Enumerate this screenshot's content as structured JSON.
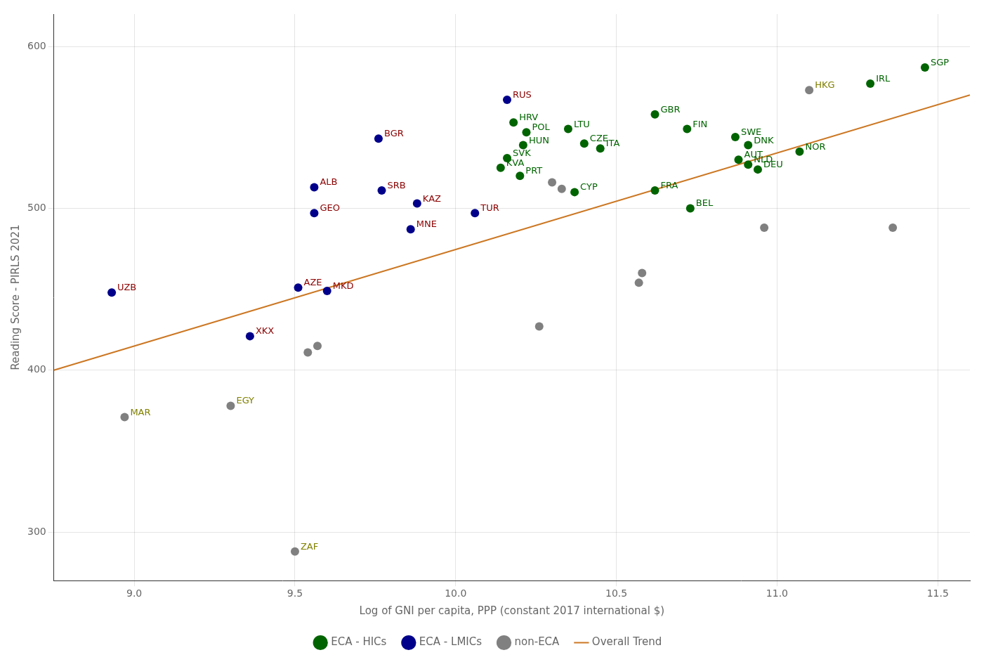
{
  "chart_data": {
    "type": "scatter",
    "xlabel": "Log of GNI per capita, PPP (constant 2017 international $)",
    "ylabel": "Reading Score - PIRLS 2021",
    "xlim": [
      8.75,
      11.6
    ],
    "ylim": [
      270,
      620
    ],
    "xticks": [
      {
        "value": 9.0,
        "label": "9.0"
      },
      9.5,
      {
        "value": 10.0,
        "label": "10.0"
      },
      10.5,
      {
        "value": 11.0,
        "label": "11.0"
      },
      11.5
    ],
    "yticks": [
      300,
      400,
      500,
      600
    ],
    "grid": true,
    "legend": "bottom",
    "series": [
      {
        "name": "ECA - HICs",
        "color": "#006400",
        "label_color": "#006400",
        "marker": "circle",
        "x": [
          10.18,
          10.22,
          10.35,
          10.62,
          10.72,
          10.21,
          10.4,
          10.45,
          10.16,
          10.14,
          10.2,
          10.37,
          10.62,
          10.73,
          10.87,
          10.91,
          10.88,
          10.91,
          10.94,
          11.07,
          11.29,
          11.46
        ],
        "values": [
          553,
          547,
          549,
          558,
          549,
          539,
          540,
          537,
          531,
          525,
          520,
          510,
          511,
          500,
          544,
          539,
          530,
          527,
          524,
          535,
          577,
          587
        ],
        "labels": [
          "HRV",
          "POL",
          "LTU",
          "GBR",
          "FIN",
          "HUN",
          "CZE",
          "ITA",
          "SVK",
          "KVA",
          "PRT",
          "CYP",
          "FRA",
          "BEL",
          "SWE",
          "DNK",
          "AUT",
          "NLD",
          "DEU",
          "NOR",
          "IRL",
          "SGP"
        ]
      },
      {
        "name": "ECA - LMICs",
        "color": "#00008B",
        "label_color": "#8B0000",
        "marker": "circle",
        "x": [
          10.16,
          9.76,
          9.56,
          9.56,
          9.77,
          9.88,
          9.86,
          10.06,
          9.51,
          9.6,
          9.36,
          8.93
        ],
        "values": [
          567,
          543,
          513,
          497,
          511,
          503,
          487,
          497,
          451,
          449,
          421,
          448
        ],
        "labels": [
          "RUS",
          "BGR",
          "ALB",
          "GEO",
          "SRB",
          "KAZ",
          "MNE",
          "TUR",
          "AZE",
          "MKD",
          "XKX",
          "UZB"
        ]
      },
      {
        "name": "non-ECA",
        "color": "#808080",
        "label_color": "#808000",
        "marker": "circle",
        "x": [
          8.97,
          9.3,
          9.5,
          11.1,
          9.54,
          9.57,
          10.26,
          10.3,
          10.33,
          10.57,
          10.58,
          10.96,
          11.36
        ],
        "values": [
          371,
          378,
          288,
          573,
          411,
          415,
          427,
          516,
          512,
          454,
          460,
          488,
          488
        ],
        "labels": [
          "MAR",
          "EGY",
          "ZAF",
          "HKG",
          null,
          null,
          null,
          null,
          null,
          null,
          null,
          null,
          null
        ]
      },
      {
        "name": "Overall Trend",
        "type": "line",
        "color": "#CC7722",
        "line_style": "solid",
        "x": [
          8.75,
          11.6
        ],
        "values": [
          400,
          570
        ]
      }
    ]
  }
}
